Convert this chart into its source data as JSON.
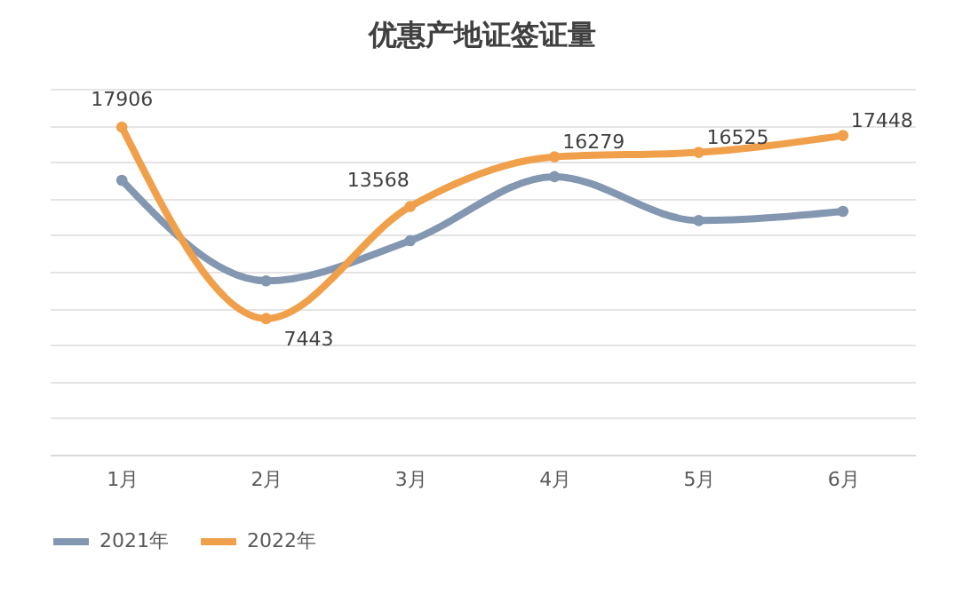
{
  "chart_data": {
    "type": "line",
    "title": "优惠产地证签证量",
    "categories": [
      "1月",
      "2月",
      "3月",
      "4月",
      "5月",
      "6月"
    ],
    "series": [
      {
        "name": "2021年",
        "color": "#8497b0",
        "values": [
          15000,
          9500,
          11700,
          15200,
          12800,
          13300
        ]
      },
      {
        "name": "2022年",
        "color": "#f0a04b",
        "values": [
          17906,
          7443,
          13568,
          16279,
          16525,
          17448
        ],
        "value_labels": [
          "17906",
          "7443",
          "13568",
          "16279",
          "16525",
          "17448"
        ]
      }
    ],
    "ylim": [
      0,
      20000
    ],
    "yticks": [
      0,
      2000,
      4000,
      6000,
      8000,
      10000,
      12000,
      14000,
      16000,
      18000,
      20000
    ],
    "grid": "y",
    "tick_labels": "x",
    "legend": "bottom",
    "marker": "circle",
    "line_style": "solid"
  }
}
